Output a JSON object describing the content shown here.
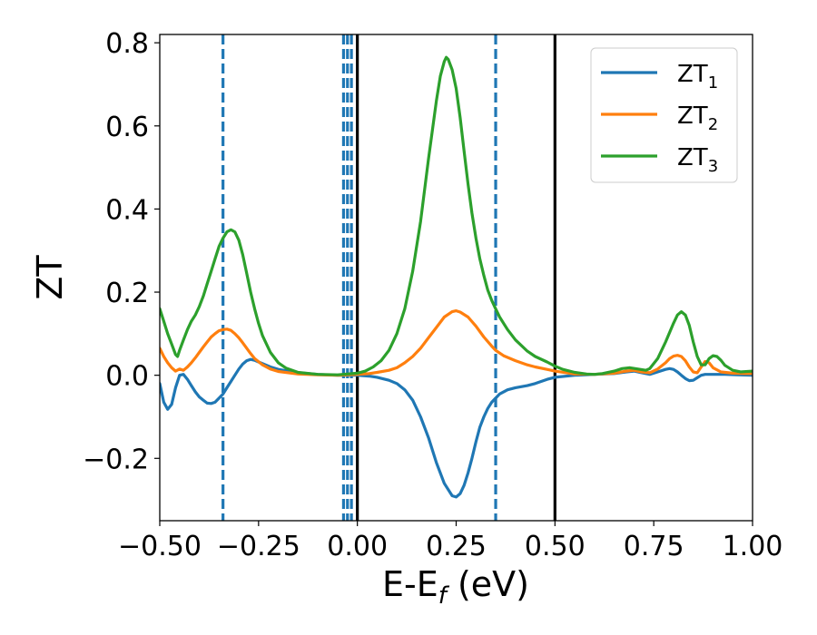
{
  "chart_data": {
    "type": "line",
    "title": "",
    "xlabel": "E-E",
    "xlabel_sub": "f",
    "xlabel_unit": " (eV)",
    "ylabel": "ZT",
    "xlim": [
      -0.5,
      1.0
    ],
    "ylim": [
      -0.35,
      0.82
    ],
    "grid": false,
    "legend_position": "top-right",
    "xticks": [
      -0.5,
      -0.25,
      0.0,
      0.25,
      0.5,
      0.75,
      1.0
    ],
    "xtick_labels": [
      "−0.50",
      "−0.25",
      "0.00",
      "0.25",
      "0.50",
      "0.75",
      "1.00"
    ],
    "yticks": [
      -0.2,
      0.0,
      0.2,
      0.4,
      0.6,
      0.8
    ],
    "ytick_labels": [
      "−0.2",
      "0.0",
      "0.2",
      "0.4",
      "0.6",
      "0.8"
    ],
    "vlines": [
      {
        "x": -0.34,
        "style": "dashed",
        "color": "#1f77b4"
      },
      {
        "x": -0.035,
        "style": "dashed",
        "color": "#1f77b4"
      },
      {
        "x": -0.025,
        "style": "dashed",
        "color": "#1f77b4"
      },
      {
        "x": -0.015,
        "style": "dashed",
        "color": "#1f77b4"
      },
      {
        "x": 0.0,
        "style": "solid",
        "color": "#000000"
      },
      {
        "x": 0.35,
        "style": "dashed",
        "color": "#1f77b4"
      },
      {
        "x": 0.5,
        "style": "solid",
        "color": "#000000"
      }
    ],
    "series": [
      {
        "name": "ZT",
        "sub": "1",
        "color": "#1f77b4",
        "points": [
          [
            -0.5,
            -0.02
          ],
          [
            -0.49,
            -0.065
          ],
          [
            -0.48,
            -0.082
          ],
          [
            -0.47,
            -0.07
          ],
          [
            -0.46,
            -0.03
          ],
          [
            -0.45,
            0.0
          ],
          [
            -0.44,
            0.002
          ],
          [
            -0.43,
            -0.01
          ],
          [
            -0.42,
            -0.025
          ],
          [
            -0.41,
            -0.04
          ],
          [
            -0.4,
            -0.052
          ],
          [
            -0.39,
            -0.06
          ],
          [
            -0.38,
            -0.067
          ],
          [
            -0.37,
            -0.068
          ],
          [
            -0.36,
            -0.065
          ],
          [
            -0.35,
            -0.055
          ],
          [
            -0.34,
            -0.045
          ],
          [
            -0.33,
            -0.03
          ],
          [
            -0.32,
            -0.015
          ],
          [
            -0.31,
            0.0
          ],
          [
            -0.3,
            0.015
          ],
          [
            -0.29,
            0.027
          ],
          [
            -0.28,
            0.035
          ],
          [
            -0.27,
            0.038
          ],
          [
            -0.26,
            0.036
          ],
          [
            -0.25,
            0.032
          ],
          [
            -0.22,
            0.02
          ],
          [
            -0.2,
            0.014
          ],
          [
            -0.15,
            0.006
          ],
          [
            -0.1,
            0.002
          ],
          [
            -0.05,
            0.0
          ],
          [
            0.0,
            0.0
          ],
          [
            0.03,
            -0.002
          ],
          [
            0.05,
            -0.005
          ],
          [
            0.08,
            -0.012
          ],
          [
            0.1,
            -0.02
          ],
          [
            0.12,
            -0.035
          ],
          [
            0.14,
            -0.06
          ],
          [
            0.16,
            -0.1
          ],
          [
            0.18,
            -0.15
          ],
          [
            0.2,
            -0.21
          ],
          [
            0.22,
            -0.26
          ],
          [
            0.24,
            -0.29
          ],
          [
            0.25,
            -0.293
          ],
          [
            0.26,
            -0.285
          ],
          [
            0.27,
            -0.265
          ],
          [
            0.28,
            -0.235
          ],
          [
            0.29,
            -0.2
          ],
          [
            0.3,
            -0.16
          ],
          [
            0.31,
            -0.125
          ],
          [
            0.32,
            -0.1
          ],
          [
            0.33,
            -0.08
          ],
          [
            0.34,
            -0.065
          ],
          [
            0.35,
            -0.055
          ],
          [
            0.36,
            -0.045
          ],
          [
            0.38,
            -0.035
          ],
          [
            0.4,
            -0.03
          ],
          [
            0.43,
            -0.025
          ],
          [
            0.45,
            -0.02
          ],
          [
            0.48,
            -0.01
          ],
          [
            0.5,
            -0.005
          ],
          [
            0.55,
            0.0
          ],
          [
            0.6,
            0.002
          ],
          [
            0.65,
            0.004
          ],
          [
            0.68,
            0.008
          ],
          [
            0.7,
            0.01
          ],
          [
            0.72,
            0.006
          ],
          [
            0.74,
            0.002
          ],
          [
            0.76,
            0.008
          ],
          [
            0.78,
            0.014
          ],
          [
            0.79,
            0.016
          ],
          [
            0.8,
            0.014
          ],
          [
            0.81,
            0.008
          ],
          [
            0.82,
            0.0
          ],
          [
            0.83,
            -0.008
          ],
          [
            0.84,
            -0.013
          ],
          [
            0.85,
            -0.012
          ],
          [
            0.86,
            -0.006
          ],
          [
            0.87,
            0.0
          ],
          [
            0.88,
            0.002
          ],
          [
            0.9,
            0.002
          ],
          [
            0.93,
            0.002
          ],
          [
            0.96,
            0.001
          ],
          [
            1.0,
            0.0
          ]
        ]
      },
      {
        "name": "ZT",
        "sub": "2",
        "color": "#ff7f0e",
        "points": [
          [
            -0.5,
            0.065
          ],
          [
            -0.49,
            0.045
          ],
          [
            -0.48,
            0.03
          ],
          [
            -0.47,
            0.018
          ],
          [
            -0.46,
            0.01
          ],
          [
            -0.45,
            0.015
          ],
          [
            -0.44,
            0.012
          ],
          [
            -0.43,
            0.02
          ],
          [
            -0.42,
            0.03
          ],
          [
            -0.41,
            0.042
          ],
          [
            -0.4,
            0.055
          ],
          [
            -0.39,
            0.068
          ],
          [
            -0.38,
            0.08
          ],
          [
            -0.37,
            0.092
          ],
          [
            -0.36,
            0.1
          ],
          [
            -0.35,
            0.107
          ],
          [
            -0.34,
            0.11
          ],
          [
            -0.33,
            0.111
          ],
          [
            -0.32,
            0.108
          ],
          [
            -0.31,
            0.1
          ],
          [
            -0.3,
            0.09
          ],
          [
            -0.29,
            0.078
          ],
          [
            -0.28,
            0.065
          ],
          [
            -0.27,
            0.052
          ],
          [
            -0.26,
            0.04
          ],
          [
            -0.24,
            0.025
          ],
          [
            -0.22,
            0.015
          ],
          [
            -0.2,
            0.009
          ],
          [
            -0.15,
            0.003
          ],
          [
            -0.1,
            0.001
          ],
          [
            -0.05,
            0.0
          ],
          [
            0.0,
            0.002
          ],
          [
            0.03,
            0.004
          ],
          [
            0.05,
            0.007
          ],
          [
            0.08,
            0.012
          ],
          [
            0.1,
            0.018
          ],
          [
            0.12,
            0.03
          ],
          [
            0.14,
            0.045
          ],
          [
            0.16,
            0.065
          ],
          [
            0.18,
            0.09
          ],
          [
            0.2,
            0.115
          ],
          [
            0.22,
            0.14
          ],
          [
            0.24,
            0.153
          ],
          [
            0.25,
            0.155
          ],
          [
            0.26,
            0.152
          ],
          [
            0.28,
            0.14
          ],
          [
            0.3,
            0.118
          ],
          [
            0.32,
            0.092
          ],
          [
            0.34,
            0.07
          ],
          [
            0.35,
            0.06
          ],
          [
            0.37,
            0.047
          ],
          [
            0.4,
            0.035
          ],
          [
            0.43,
            0.025
          ],
          [
            0.45,
            0.02
          ],
          [
            0.48,
            0.014
          ],
          [
            0.5,
            0.01
          ],
          [
            0.55,
            0.003
          ],
          [
            0.6,
            0.002
          ],
          [
            0.65,
            0.005
          ],
          [
            0.68,
            0.01
          ],
          [
            0.7,
            0.012
          ],
          [
            0.72,
            0.008
          ],
          [
            0.74,
            0.006
          ],
          [
            0.76,
            0.015
          ],
          [
            0.78,
            0.03
          ],
          [
            0.79,
            0.04
          ],
          [
            0.8,
            0.046
          ],
          [
            0.81,
            0.048
          ],
          [
            0.82,
            0.045
          ],
          [
            0.83,
            0.035
          ],
          [
            0.84,
            0.02
          ],
          [
            0.85,
            0.008
          ],
          [
            0.86,
            0.006
          ],
          [
            0.87,
            0.02
          ],
          [
            0.88,
            0.033
          ],
          [
            0.89,
            0.03
          ],
          [
            0.9,
            0.018
          ],
          [
            0.92,
            0.008
          ],
          [
            0.95,
            0.005
          ],
          [
            0.98,
            0.004
          ],
          [
            1.0,
            0.004
          ]
        ]
      },
      {
        "name": "ZT",
        "sub": "3",
        "color": "#2ca02c",
        "points": [
          [
            -0.5,
            0.16
          ],
          [
            -0.49,
            0.13
          ],
          [
            -0.48,
            0.1
          ],
          [
            -0.47,
            0.075
          ],
          [
            -0.46,
            0.05
          ],
          [
            -0.455,
            0.045
          ],
          [
            -0.45,
            0.06
          ],
          [
            -0.44,
            0.085
          ],
          [
            -0.43,
            0.11
          ],
          [
            -0.42,
            0.13
          ],
          [
            -0.41,
            0.145
          ],
          [
            -0.4,
            0.165
          ],
          [
            -0.39,
            0.19
          ],
          [
            -0.38,
            0.22
          ],
          [
            -0.37,
            0.25
          ],
          [
            -0.36,
            0.28
          ],
          [
            -0.35,
            0.31
          ],
          [
            -0.34,
            0.33
          ],
          [
            -0.33,
            0.345
          ],
          [
            -0.32,
            0.35
          ],
          [
            -0.31,
            0.345
          ],
          [
            -0.3,
            0.325
          ],
          [
            -0.29,
            0.29
          ],
          [
            -0.28,
            0.245
          ],
          [
            -0.27,
            0.2
          ],
          [
            -0.26,
            0.16
          ],
          [
            -0.25,
            0.125
          ],
          [
            -0.24,
            0.095
          ],
          [
            -0.22,
            0.055
          ],
          [
            -0.2,
            0.03
          ],
          [
            -0.18,
            0.017
          ],
          [
            -0.15,
            0.007
          ],
          [
            -0.1,
            0.002
          ],
          [
            -0.05,
            0.001
          ],
          [
            0.0,
            0.005
          ],
          [
            0.02,
            0.01
          ],
          [
            0.04,
            0.02
          ],
          [
            0.06,
            0.035
          ],
          [
            0.08,
            0.06
          ],
          [
            0.1,
            0.1
          ],
          [
            0.12,
            0.16
          ],
          [
            0.14,
            0.25
          ],
          [
            0.16,
            0.37
          ],
          [
            0.18,
            0.52
          ],
          [
            0.2,
            0.66
          ],
          [
            0.21,
            0.72
          ],
          [
            0.22,
            0.755
          ],
          [
            0.225,
            0.765
          ],
          [
            0.23,
            0.76
          ],
          [
            0.24,
            0.735
          ],
          [
            0.25,
            0.69
          ],
          [
            0.26,
            0.62
          ],
          [
            0.27,
            0.54
          ],
          [
            0.28,
            0.46
          ],
          [
            0.29,
            0.39
          ],
          [
            0.3,
            0.33
          ],
          [
            0.31,
            0.28
          ],
          [
            0.32,
            0.24
          ],
          [
            0.33,
            0.205
          ],
          [
            0.34,
            0.18
          ],
          [
            0.35,
            0.16
          ],
          [
            0.36,
            0.14
          ],
          [
            0.38,
            0.11
          ],
          [
            0.4,
            0.085
          ],
          [
            0.43,
            0.058
          ],
          [
            0.45,
            0.045
          ],
          [
            0.48,
            0.032
          ],
          [
            0.5,
            0.022
          ],
          [
            0.52,
            0.014
          ],
          [
            0.55,
            0.007
          ],
          [
            0.58,
            0.003
          ],
          [
            0.6,
            0.002
          ],
          [
            0.62,
            0.004
          ],
          [
            0.65,
            0.01
          ],
          [
            0.67,
            0.016
          ],
          [
            0.69,
            0.018
          ],
          [
            0.71,
            0.015
          ],
          [
            0.73,
            0.012
          ],
          [
            0.74,
            0.016
          ],
          [
            0.76,
            0.04
          ],
          [
            0.78,
            0.08
          ],
          [
            0.8,
            0.125
          ],
          [
            0.81,
            0.145
          ],
          [
            0.82,
            0.153
          ],
          [
            0.83,
            0.145
          ],
          [
            0.84,
            0.12
          ],
          [
            0.85,
            0.08
          ],
          [
            0.86,
            0.045
          ],
          [
            0.87,
            0.025
          ],
          [
            0.88,
            0.025
          ],
          [
            0.89,
            0.04
          ],
          [
            0.9,
            0.047
          ],
          [
            0.91,
            0.045
          ],
          [
            0.92,
            0.036
          ],
          [
            0.93,
            0.024
          ],
          [
            0.95,
            0.012
          ],
          [
            0.97,
            0.008
          ],
          [
            1.0,
            0.01
          ]
        ]
      }
    ]
  }
}
